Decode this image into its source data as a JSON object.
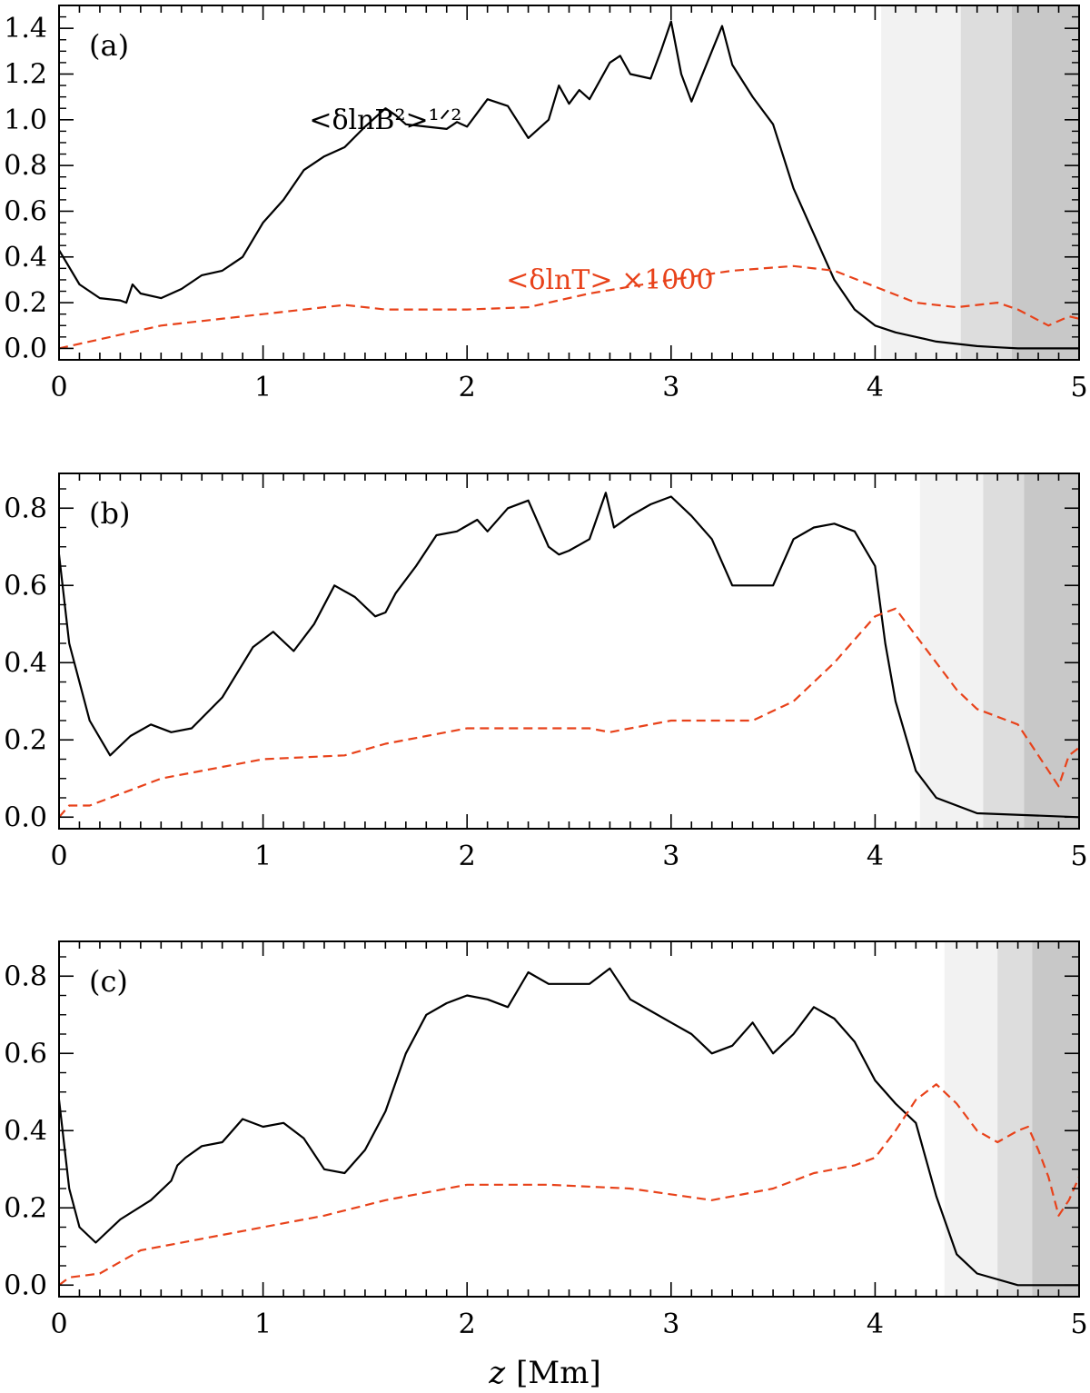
{
  "figure": {
    "xlabel_var": "z",
    "xlabel_unit": "[Mm]"
  },
  "colors": {
    "b_line": "#000000",
    "t_line": "#e8421a",
    "shade_light": "#f2f2f2",
    "shade_mid": "#dddddd",
    "shade_dark": "#c8c8c8"
  },
  "chart_data": [
    {
      "type": "line",
      "panel": "(a)",
      "xlim": [
        0,
        5
      ],
      "ylim": [
        -0.05,
        1.5
      ],
      "xticks": [
        0,
        1,
        2,
        3,
        4,
        5
      ],
      "yticks": [
        0.0,
        0.2,
        0.4,
        0.6,
        0.8,
        1.0,
        1.2,
        1.4
      ],
      "shaded_regions": [
        {
          "from": 4.03,
          "to": 4.42,
          "shade": "light"
        },
        {
          "from": 4.42,
          "to": 4.67,
          "shade": "mid"
        },
        {
          "from": 4.67,
          "to": 5.0,
          "shade": "dark"
        }
      ],
      "annotations": [
        {
          "text": "<δlnB²>¹ᐟ²",
          "x": 1.6,
          "y": 1.0,
          "color": "#000000"
        },
        {
          "text": "<δlnT>  ×1000",
          "x": 2.7,
          "y": 0.3,
          "color": "#e8421a"
        }
      ],
      "series": [
        {
          "style": "solid",
          "x": [
            0,
            0.1,
            0.2,
            0.3,
            0.33,
            0.36,
            0.4,
            0.5,
            0.6,
            0.7,
            0.8,
            0.9,
            1.0,
            1.1,
            1.2,
            1.3,
            1.4,
            1.5,
            1.6,
            1.65,
            1.7,
            1.8,
            1.9,
            1.95,
            2.0,
            2.1,
            2.2,
            2.3,
            2.4,
            2.45,
            2.5,
            2.55,
            2.6,
            2.7,
            2.75,
            2.8,
            2.9,
            2.95,
            3.0,
            3.05,
            3.1,
            3.2,
            3.25,
            3.3,
            3.4,
            3.5,
            3.6,
            3.7,
            3.8,
            3.9,
            4.0,
            4.1,
            4.2,
            4.3,
            4.4,
            4.5,
            4.6,
            4.7,
            4.8,
            5.0
          ],
          "y": [
            0.43,
            0.28,
            0.22,
            0.21,
            0.2,
            0.28,
            0.24,
            0.22,
            0.26,
            0.32,
            0.34,
            0.4,
            0.55,
            0.65,
            0.78,
            0.84,
            0.88,
            0.97,
            1.05,
            1.02,
            0.98,
            0.97,
            0.96,
            0.99,
            0.97,
            1.09,
            1.06,
            0.92,
            1.0,
            1.15,
            1.07,
            1.13,
            1.09,
            1.25,
            1.28,
            1.2,
            1.18,
            1.3,
            1.43,
            1.2,
            1.08,
            1.3,
            1.41,
            1.24,
            1.1,
            0.98,
            0.7,
            0.5,
            0.3,
            0.17,
            0.1,
            0.07,
            0.05,
            0.03,
            0.02,
            0.01,
            0.005,
            0.0,
            0.0,
            0.0
          ]
        },
        {
          "style": "dashed",
          "x": [
            0,
            0.2,
            0.5,
            1.0,
            1.4,
            1.6,
            2.0,
            2.3,
            2.6,
            3.0,
            3.3,
            3.6,
            3.8,
            4.0,
            4.2,
            4.4,
            4.6,
            4.7,
            4.85,
            4.9,
            4.95,
            5.0
          ],
          "y": [
            0.0,
            0.04,
            0.1,
            0.15,
            0.19,
            0.17,
            0.17,
            0.18,
            0.24,
            0.3,
            0.34,
            0.36,
            0.34,
            0.27,
            0.2,
            0.18,
            0.2,
            0.17,
            0.1,
            0.12,
            0.14,
            0.13
          ]
        }
      ]
    },
    {
      "type": "line",
      "panel": "(b)",
      "xlim": [
        0,
        5
      ],
      "ylim": [
        -0.03,
        0.89
      ],
      "xticks": [
        0,
        1,
        2,
        3,
        4,
        5
      ],
      "yticks": [
        0.0,
        0.2,
        0.4,
        0.6,
        0.8
      ],
      "shaded_regions": [
        {
          "from": 4.22,
          "to": 4.53,
          "shade": "light"
        },
        {
          "from": 4.53,
          "to": 4.73,
          "shade": "mid"
        },
        {
          "from": 4.73,
          "to": 5.0,
          "shade": "dark"
        }
      ],
      "series": [
        {
          "style": "solid",
          "x": [
            0,
            0.05,
            0.15,
            0.25,
            0.35,
            0.45,
            0.55,
            0.65,
            0.8,
            0.95,
            1.05,
            1.15,
            1.25,
            1.35,
            1.45,
            1.55,
            1.6,
            1.65,
            1.75,
            1.85,
            1.95,
            2.05,
            2.1,
            2.2,
            2.3,
            2.35,
            2.4,
            2.45,
            2.5,
            2.6,
            2.68,
            2.72,
            2.8,
            2.9,
            3.0,
            3.1,
            3.2,
            3.3,
            3.4,
            3.5,
            3.6,
            3.7,
            3.8,
            3.9,
            4.0,
            4.05,
            4.1,
            4.2,
            4.3,
            4.5,
            5.0
          ],
          "y": [
            0.68,
            0.45,
            0.25,
            0.16,
            0.21,
            0.24,
            0.22,
            0.23,
            0.31,
            0.44,
            0.48,
            0.43,
            0.5,
            0.6,
            0.57,
            0.52,
            0.53,
            0.58,
            0.65,
            0.73,
            0.74,
            0.77,
            0.74,
            0.8,
            0.82,
            0.76,
            0.7,
            0.68,
            0.69,
            0.72,
            0.84,
            0.75,
            0.78,
            0.81,
            0.83,
            0.78,
            0.72,
            0.6,
            0.6,
            0.6,
            0.72,
            0.75,
            0.76,
            0.74,
            0.65,
            0.45,
            0.3,
            0.12,
            0.05,
            0.01,
            0.0
          ]
        },
        {
          "style": "dashed",
          "x": [
            0,
            0.05,
            0.15,
            0.3,
            0.5,
            0.8,
            1.0,
            1.4,
            1.6,
            1.8,
            2.0,
            2.3,
            2.6,
            2.7,
            3.0,
            3.4,
            3.6,
            3.8,
            4.0,
            4.1,
            4.2,
            4.3,
            4.4,
            4.5,
            4.6,
            4.7,
            4.8,
            4.85,
            4.9,
            4.95,
            5.0
          ],
          "y": [
            0.0,
            0.03,
            0.03,
            0.06,
            0.1,
            0.13,
            0.15,
            0.16,
            0.19,
            0.21,
            0.23,
            0.23,
            0.23,
            0.22,
            0.25,
            0.25,
            0.3,
            0.4,
            0.52,
            0.54,
            0.47,
            0.4,
            0.33,
            0.28,
            0.26,
            0.24,
            0.16,
            0.12,
            0.08,
            0.16,
            0.18
          ]
        }
      ]
    },
    {
      "type": "line",
      "panel": "(c)",
      "xlim": [
        0,
        5
      ],
      "ylim": [
        -0.03,
        0.89
      ],
      "xticks": [
        0,
        1,
        2,
        3,
        4,
        5
      ],
      "yticks": [
        0.0,
        0.2,
        0.4,
        0.6,
        0.8
      ],
      "shaded_regions": [
        {
          "from": 4.34,
          "to": 4.6,
          "shade": "light"
        },
        {
          "from": 4.6,
          "to": 4.77,
          "shade": "mid"
        },
        {
          "from": 4.77,
          "to": 5.0,
          "shade": "dark"
        }
      ],
      "series": [
        {
          "style": "solid",
          "x": [
            0,
            0.05,
            0.1,
            0.18,
            0.3,
            0.45,
            0.55,
            0.58,
            0.62,
            0.7,
            0.8,
            0.9,
            1.0,
            1.1,
            1.2,
            1.3,
            1.4,
            1.5,
            1.6,
            1.7,
            1.8,
            1.9,
            2.0,
            2.1,
            2.2,
            2.3,
            2.4,
            2.5,
            2.6,
            2.7,
            2.8,
            2.9,
            3.0,
            3.1,
            3.2,
            3.3,
            3.4,
            3.5,
            3.6,
            3.7,
            3.8,
            3.9,
            4.0,
            4.1,
            4.2,
            4.3,
            4.4,
            4.5,
            4.7,
            5.0
          ],
          "y": [
            0.48,
            0.25,
            0.15,
            0.11,
            0.17,
            0.22,
            0.27,
            0.31,
            0.33,
            0.36,
            0.37,
            0.43,
            0.41,
            0.42,
            0.38,
            0.3,
            0.29,
            0.35,
            0.45,
            0.6,
            0.7,
            0.73,
            0.75,
            0.74,
            0.72,
            0.81,
            0.78,
            0.78,
            0.78,
            0.82,
            0.74,
            0.71,
            0.68,
            0.65,
            0.6,
            0.62,
            0.68,
            0.6,
            0.65,
            0.72,
            0.69,
            0.63,
            0.53,
            0.47,
            0.42,
            0.23,
            0.08,
            0.03,
            0.0,
            0.0
          ]
        },
        {
          "style": "dashed",
          "x": [
            0,
            0.05,
            0.2,
            0.4,
            0.7,
            1.0,
            1.3,
            1.6,
            2.0,
            2.4,
            2.8,
            3.2,
            3.5,
            3.7,
            3.9,
            4.0,
            4.1,
            4.2,
            4.3,
            4.4,
            4.5,
            4.6,
            4.7,
            4.75,
            4.8,
            4.85,
            4.9,
            4.95,
            5.0
          ],
          "y": [
            0.0,
            0.02,
            0.03,
            0.09,
            0.12,
            0.15,
            0.18,
            0.22,
            0.26,
            0.26,
            0.25,
            0.22,
            0.25,
            0.29,
            0.31,
            0.33,
            0.4,
            0.48,
            0.52,
            0.47,
            0.4,
            0.37,
            0.4,
            0.41,
            0.35,
            0.28,
            0.18,
            0.22,
            0.28
          ]
        }
      ]
    }
  ]
}
